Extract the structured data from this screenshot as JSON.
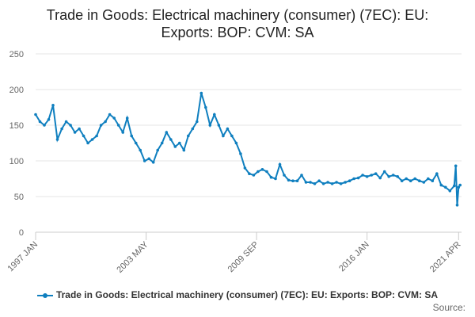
{
  "chart_data": {
    "type": "line",
    "title_line1": "Trade in Goods: Electrical machinery (consumer) (7EC): EU:",
    "title_line2": "Exports: BOP: CVM: SA",
    "ylim": [
      0,
      250
    ],
    "y_ticks": [
      0,
      50,
      100,
      150,
      200,
      250
    ],
    "x_ticks": [
      "1997 JAN",
      "2003 MAY",
      "2009 SEP",
      "2016 JAN",
      "2021 APR"
    ],
    "xlim": [
      "1997-01",
      "2021-06"
    ],
    "grid": true,
    "legend_position": "bottom",
    "source_label": "Source:",
    "series": [
      {
        "name": "Trade in Goods: Electrical machinery (consumer) (7EC): EU: Exports: BOP: CVM: SA",
        "color": "#0f7fbf",
        "points": [
          [
            "1997-01",
            165
          ],
          [
            "1997-04",
            155
          ],
          [
            "1997-07",
            150
          ],
          [
            "1997-10",
            158
          ],
          [
            "1998-01",
            178
          ],
          [
            "1998-04",
            130
          ],
          [
            "1998-07",
            145
          ],
          [
            "1998-10",
            155
          ],
          [
            "1999-01",
            150
          ],
          [
            "1999-04",
            140
          ],
          [
            "1999-07",
            145
          ],
          [
            "1999-10",
            135
          ],
          [
            "2000-01",
            125
          ],
          [
            "2000-04",
            130
          ],
          [
            "2000-07",
            135
          ],
          [
            "2000-10",
            150
          ],
          [
            "2001-01",
            155
          ],
          [
            "2001-04",
            165
          ],
          [
            "2001-07",
            160
          ],
          [
            "2001-10",
            150
          ],
          [
            "2002-01",
            140
          ],
          [
            "2002-04",
            160
          ],
          [
            "2002-07",
            135
          ],
          [
            "2002-10",
            125
          ],
          [
            "2003-01",
            115
          ],
          [
            "2003-04",
            100
          ],
          [
            "2003-07",
            103
          ],
          [
            "2003-10",
            98
          ],
          [
            "2004-01",
            115
          ],
          [
            "2004-04",
            125
          ],
          [
            "2004-07",
            140
          ],
          [
            "2004-10",
            130
          ],
          [
            "2005-01",
            120
          ],
          [
            "2005-04",
            125
          ],
          [
            "2005-07",
            115
          ],
          [
            "2005-10",
            135
          ],
          [
            "2006-01",
            145
          ],
          [
            "2006-04",
            155
          ],
          [
            "2006-07",
            195
          ],
          [
            "2006-10",
            175
          ],
          [
            "2007-01",
            150
          ],
          [
            "2007-04",
            165
          ],
          [
            "2007-07",
            150
          ],
          [
            "2007-10",
            135
          ],
          [
            "2008-01",
            145
          ],
          [
            "2008-04",
            135
          ],
          [
            "2008-07",
            125
          ],
          [
            "2008-10",
            110
          ],
          [
            "2009-01",
            90
          ],
          [
            "2009-04",
            82
          ],
          [
            "2009-07",
            80
          ],
          [
            "2009-10",
            85
          ],
          [
            "2010-01",
            88
          ],
          [
            "2010-04",
            85
          ],
          [
            "2010-07",
            77
          ],
          [
            "2010-10",
            75
          ],
          [
            "2011-01",
            95
          ],
          [
            "2011-04",
            80
          ],
          [
            "2011-07",
            73
          ],
          [
            "2011-10",
            72
          ],
          [
            "2012-01",
            72
          ],
          [
            "2012-04",
            80
          ],
          [
            "2012-07",
            70
          ],
          [
            "2012-10",
            70
          ],
          [
            "2013-01",
            68
          ],
          [
            "2013-04",
            72
          ],
          [
            "2013-07",
            68
          ],
          [
            "2013-10",
            70
          ],
          [
            "2014-01",
            68
          ],
          [
            "2014-04",
            70
          ],
          [
            "2014-07",
            68
          ],
          [
            "2014-10",
            70
          ],
          [
            "2015-01",
            72
          ],
          [
            "2015-04",
            75
          ],
          [
            "2015-07",
            76
          ],
          [
            "2015-10",
            80
          ],
          [
            "2016-01",
            78
          ],
          [
            "2016-04",
            80
          ],
          [
            "2016-07",
            82
          ],
          [
            "2016-10",
            76
          ],
          [
            "2017-01",
            85
          ],
          [
            "2017-04",
            78
          ],
          [
            "2017-07",
            80
          ],
          [
            "2017-10",
            78
          ],
          [
            "2018-01",
            72
          ],
          [
            "2018-04",
            75
          ],
          [
            "2018-07",
            72
          ],
          [
            "2018-10",
            75
          ],
          [
            "2019-01",
            72
          ],
          [
            "2019-04",
            70
          ],
          [
            "2019-07",
            75
          ],
          [
            "2019-10",
            72
          ],
          [
            "2020-01",
            82
          ],
          [
            "2020-04",
            66
          ],
          [
            "2020-07",
            63
          ],
          [
            "2020-10",
            58
          ],
          [
            "2021-01",
            65
          ],
          [
            "2021-02",
            93
          ],
          [
            "2021-03",
            38
          ],
          [
            "2021-04",
            63
          ],
          [
            "2021-05",
            66
          ]
        ]
      }
    ]
  }
}
